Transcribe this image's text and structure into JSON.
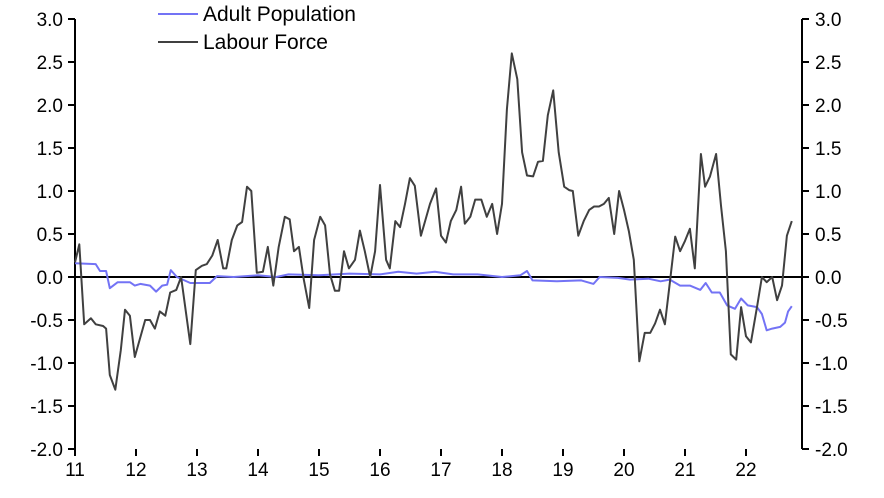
{
  "chart_data": {
    "type": "line",
    "title": "",
    "xlabel": "",
    "ylabel": "",
    "xlim": [
      11,
      22.9
    ],
    "ylim": [
      -2.0,
      3.0
    ],
    "x_ticks": [
      "11",
      "12",
      "13",
      "14",
      "15",
      "16",
      "17",
      "18",
      "19",
      "20",
      "21",
      "22"
    ],
    "y_ticks": [
      "3.0",
      "2.5",
      "2.0",
      "1.5",
      "1.0",
      "0.5",
      "0.0",
      "-0.5",
      "-1.0",
      "-1.5",
      "-2.0"
    ],
    "grid": false,
    "legend_position": "top-left",
    "series": [
      {
        "name": "Adult Population",
        "color": "#7373f5",
        "x": [
          11.0,
          11.34,
          11.41,
          11.51,
          11.57,
          11.7,
          11.9,
          11.98,
          12.07,
          12.23,
          12.33,
          12.43,
          12.51,
          12.57,
          12.67,
          12.89,
          13.21,
          13.33,
          13.6,
          14.0,
          14.3,
          14.5,
          15.0,
          15.5,
          16.0,
          16.3,
          16.6,
          16.9,
          17.2,
          17.6,
          18.0,
          18.3,
          18.41,
          18.5,
          18.9,
          19.3,
          19.5,
          19.6,
          19.9,
          20.1,
          20.4,
          20.6,
          20.75,
          20.92,
          21.08,
          21.25,
          21.34,
          21.44,
          21.57,
          21.69,
          21.82,
          21.92,
          22.03,
          22.18,
          22.26,
          22.34,
          22.43,
          22.56,
          22.64,
          22.69,
          22.75
        ],
        "y": [
          0.16,
          0.15,
          0.07,
          0.07,
          -0.13,
          -0.06,
          -0.06,
          -0.1,
          -0.08,
          -0.1,
          -0.17,
          -0.1,
          -0.09,
          0.08,
          0.0,
          -0.07,
          -0.07,
          0.01,
          0.0,
          0.02,
          0.0,
          0.03,
          0.02,
          0.04,
          0.03,
          0.06,
          0.04,
          0.06,
          0.03,
          0.03,
          0.0,
          0.02,
          0.07,
          -0.04,
          -0.05,
          -0.04,
          -0.08,
          0.0,
          -0.01,
          -0.03,
          -0.02,
          -0.05,
          -0.03,
          -0.1,
          -0.1,
          -0.15,
          -0.07,
          -0.18,
          -0.18,
          -0.33,
          -0.37,
          -0.25,
          -0.33,
          -0.35,
          -0.43,
          -0.62,
          -0.6,
          -0.58,
          -0.53,
          -0.4,
          -0.34
        ]
      },
      {
        "name": "Labour Force",
        "color": "#404040",
        "x": [
          11.0,
          11.07,
          11.15,
          11.26,
          11.34,
          11.46,
          11.51,
          11.57,
          11.66,
          11.75,
          11.82,
          11.9,
          11.98,
          12.15,
          12.23,
          12.31,
          12.39,
          12.48,
          12.56,
          12.66,
          12.74,
          12.89,
          12.98,
          13.08,
          13.16,
          13.25,
          13.34,
          13.43,
          13.48,
          13.57,
          13.66,
          13.74,
          13.82,
          13.89,
          13.98,
          14.08,
          14.16,
          14.25,
          14.34,
          14.44,
          14.52,
          14.59,
          14.67,
          14.75,
          14.84,
          14.92,
          15.02,
          15.1,
          15.18,
          15.26,
          15.33,
          15.41,
          15.49,
          15.59,
          15.67,
          15.75,
          15.84,
          15.92,
          16.0,
          16.1,
          16.16,
          16.25,
          16.33,
          16.41,
          16.49,
          16.57,
          16.67,
          16.74,
          16.82,
          16.92,
          17.0,
          17.08,
          17.16,
          17.25,
          17.33,
          17.39,
          17.48,
          17.56,
          17.66,
          17.75,
          17.84,
          17.92,
          18.0,
          18.08,
          18.16,
          18.25,
          18.33,
          18.41,
          18.51,
          18.59,
          18.67,
          18.75,
          18.84,
          18.93,
          19.02,
          19.1,
          19.16,
          19.25,
          19.34,
          19.43,
          19.51,
          19.59,
          19.67,
          19.75,
          19.84,
          19.92,
          20.0,
          20.08,
          20.16,
          20.25,
          20.34,
          20.43,
          20.51,
          20.59,
          20.67,
          20.75,
          20.84,
          20.92,
          21.0,
          21.08,
          21.16,
          21.26,
          21.33,
          21.41,
          21.51,
          21.59,
          21.67,
          21.75,
          21.84,
          21.92,
          22.0,
          22.08,
          22.18,
          22.26,
          22.34,
          22.43,
          22.51,
          22.59,
          22.67,
          22.75
        ],
        "y": [
          0.17,
          0.38,
          -0.55,
          -0.48,
          -0.55,
          -0.57,
          -0.6,
          -1.14,
          -1.31,
          -0.85,
          -0.38,
          -0.45,
          -0.93,
          -0.5,
          -0.5,
          -0.6,
          -0.4,
          -0.45,
          -0.18,
          -0.15,
          0.0,
          -0.78,
          0.08,
          0.13,
          0.15,
          0.25,
          0.43,
          0.1,
          0.1,
          0.43,
          0.6,
          0.64,
          1.05,
          1.0,
          0.05,
          0.06,
          0.35,
          -0.1,
          0.35,
          0.7,
          0.67,
          0.3,
          0.35,
          -0.03,
          -0.36,
          0.43,
          0.7,
          0.6,
          0.03,
          -0.16,
          -0.16,
          0.3,
          0.1,
          0.2,
          0.54,
          0.3,
          0.0,
          0.3,
          1.07,
          0.2,
          0.1,
          0.65,
          0.58,
          0.85,
          1.15,
          1.06,
          0.48,
          0.65,
          0.85,
          1.03,
          0.48,
          0.4,
          0.65,
          0.78,
          1.05,
          0.62,
          0.7,
          0.9,
          0.9,
          0.7,
          0.85,
          0.5,
          0.85,
          1.95,
          2.6,
          2.3,
          1.45,
          1.18,
          1.17,
          1.34,
          1.35,
          1.88,
          2.17,
          1.45,
          1.05,
          1.01,
          1.0,
          0.48,
          0.65,
          0.78,
          0.82,
          0.82,
          0.85,
          0.92,
          0.5,
          1.0,
          0.78,
          0.53,
          0.2,
          -0.98,
          -0.65,
          -0.65,
          -0.54,
          -0.38,
          -0.55,
          -0.07,
          0.47,
          0.3,
          0.42,
          0.56,
          0.1,
          1.43,
          1.05,
          1.17,
          1.43,
          0.83,
          0.3,
          -0.9,
          -0.96,
          -0.35,
          -0.69,
          -0.76,
          -0.35,
          0.0,
          -0.06,
          0.0,
          -0.27,
          -0.1,
          0.48,
          0.65
        ]
      }
    ]
  }
}
